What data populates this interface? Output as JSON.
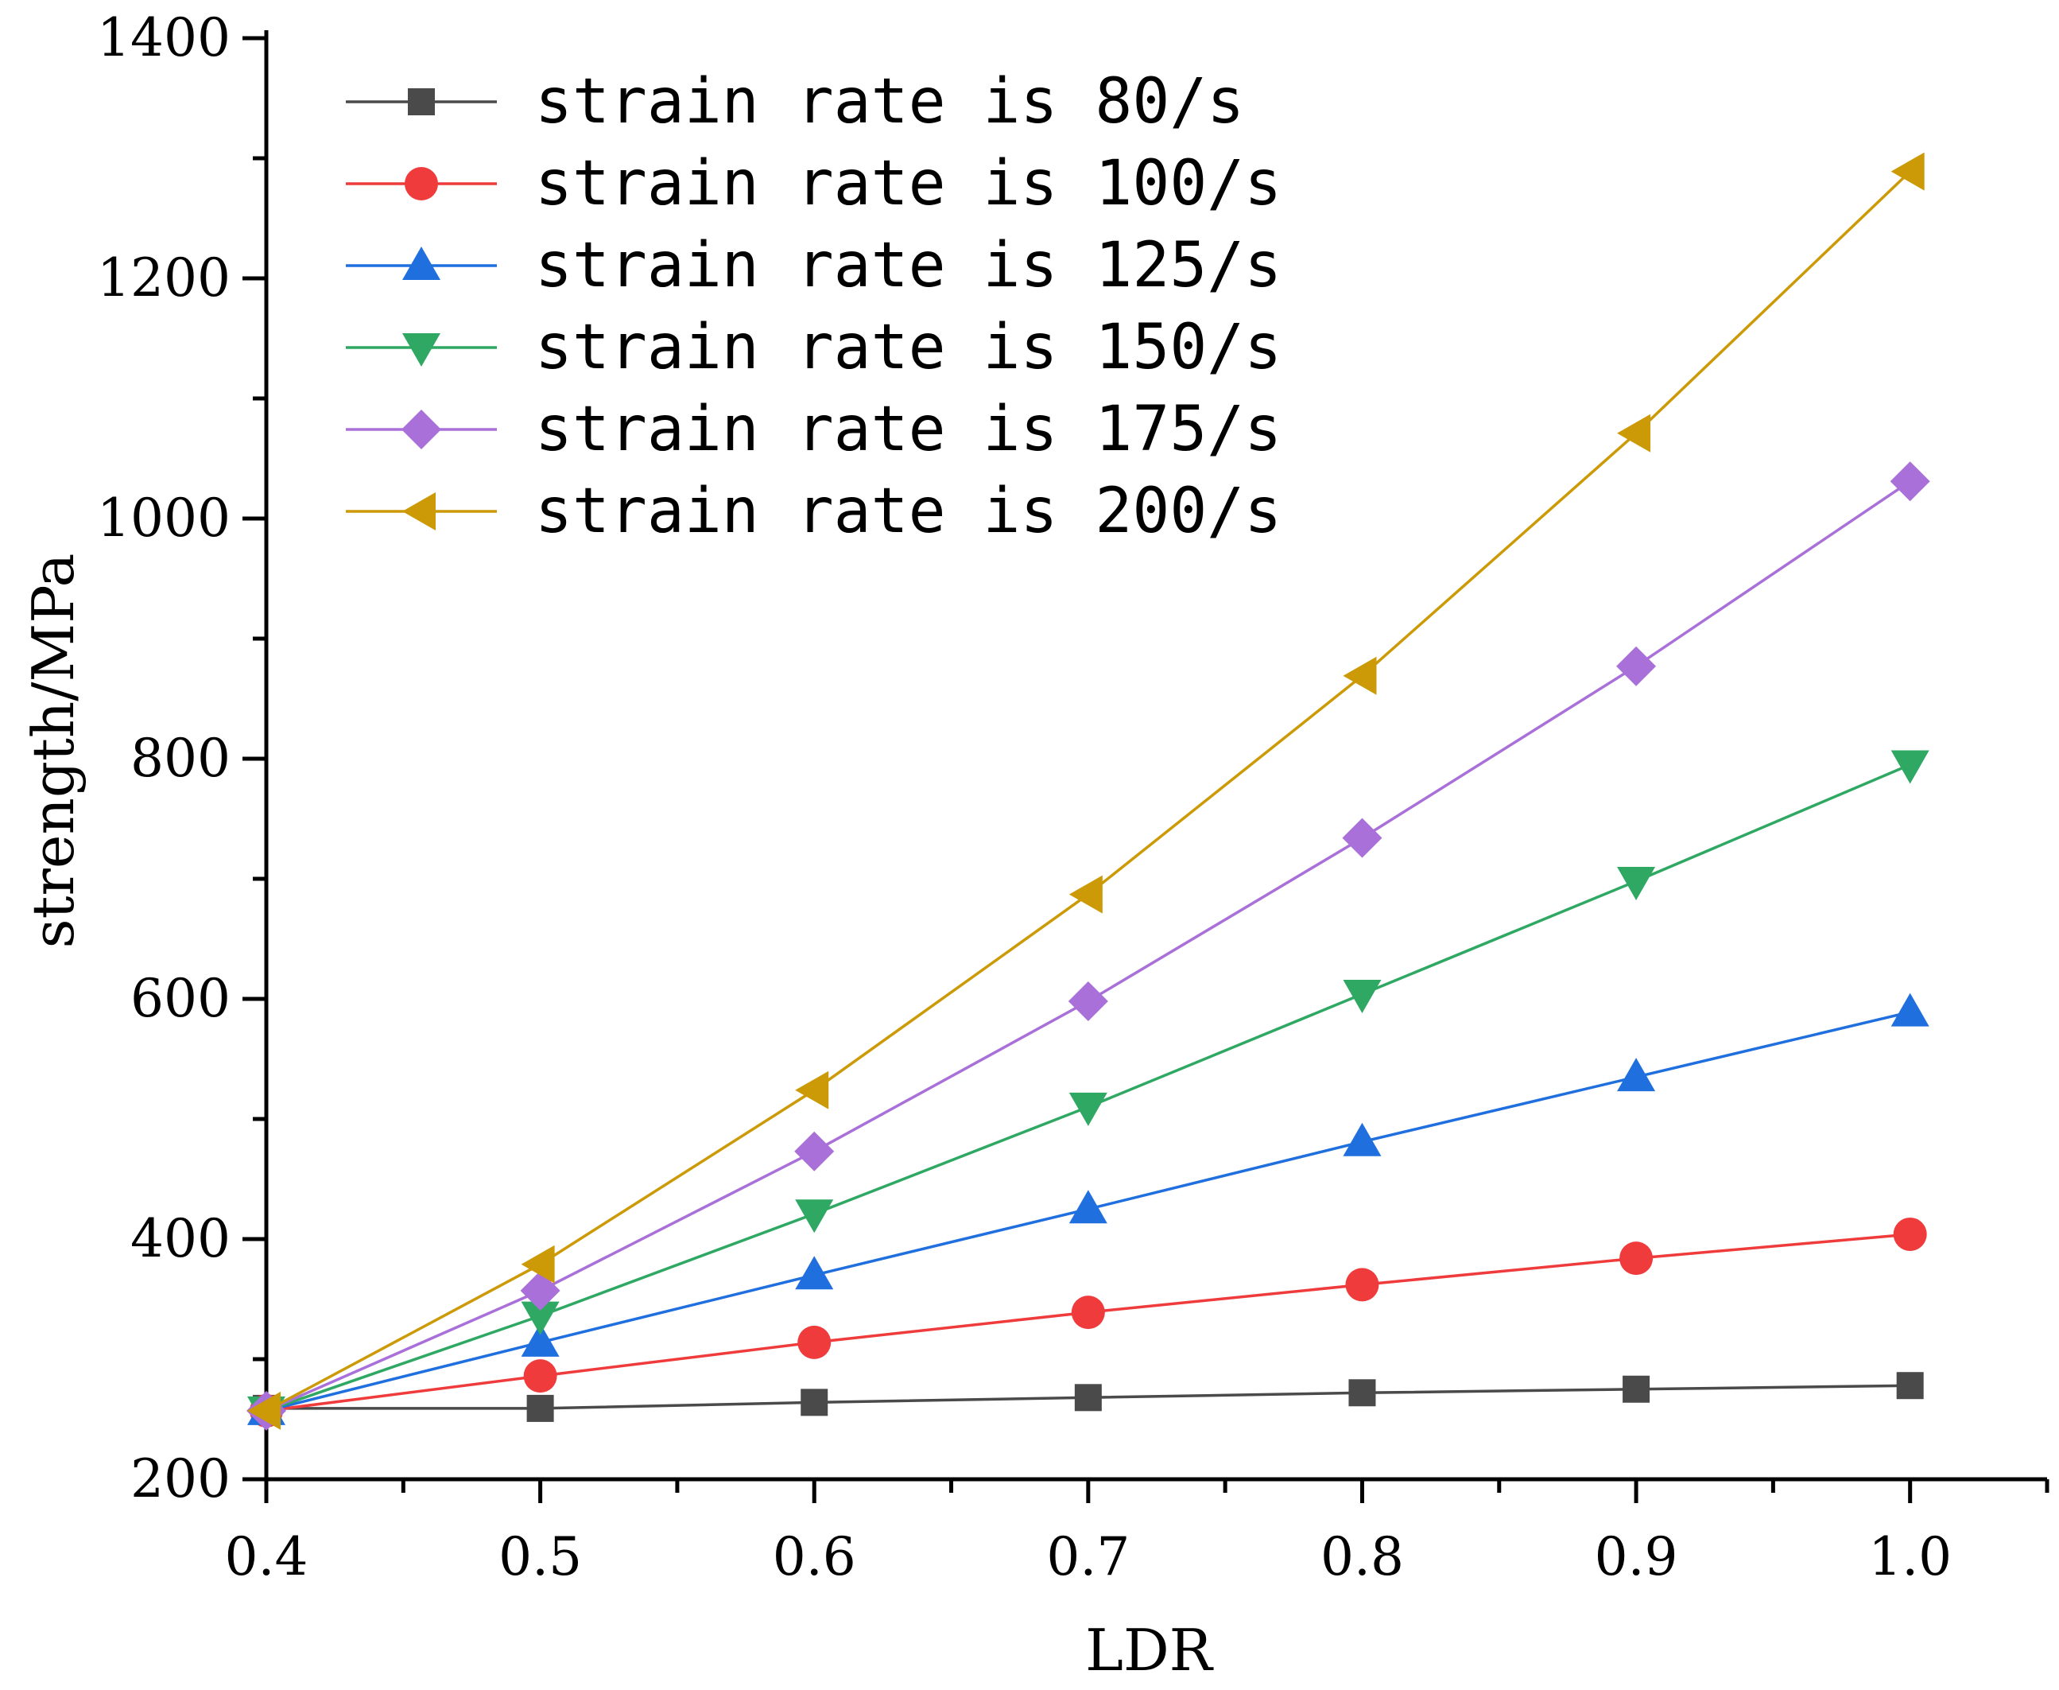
{
  "chart_data": {
    "type": "line",
    "xlabel": "LDR",
    "ylabel": "strength/MPa",
    "xlim": [
      0.4,
      1.05
    ],
    "ylim": [
      200,
      1400
    ],
    "x_ticks": [
      0.4,
      0.5,
      0.6,
      0.7,
      0.8,
      0.9,
      1.0
    ],
    "x_tick_labels": [
      "0.4",
      "0.5",
      "0.6",
      "0.7",
      "0.8",
      "0.9",
      "1.0"
    ],
    "y_ticks": [
      200,
      400,
      600,
      800,
      1000,
      1200,
      1400
    ],
    "y_tick_labels": [
      "200",
      "400",
      "600",
      "800",
      "1000",
      "1200",
      "1400"
    ],
    "grid": false,
    "legend_position": "top-left",
    "x": [
      0.4,
      0.5,
      0.6,
      0.7,
      0.8,
      0.9,
      1.0
    ],
    "series": [
      {
        "name": "strain rate is 80/s",
        "color": "#4a4a4a",
        "marker": "square",
        "values": [
          259,
          259,
          264,
          268,
          272,
          275,
          278
        ]
      },
      {
        "name": "strain rate is 100/s",
        "color": "#ef3b3b",
        "marker": "circle",
        "values": [
          257,
          286,
          314,
          339,
          362,
          384,
          404
        ]
      },
      {
        "name": "strain rate is 125/s",
        "color": "#1f6fdf",
        "marker": "triangle-up",
        "values": [
          257,
          314,
          370,
          425,
          481,
          535,
          589
        ]
      },
      {
        "name": "strain rate is 150/s",
        "color": "#2ea862",
        "marker": "triangle-down",
        "values": [
          257,
          336,
          421,
          510,
          604,
          698,
          795
        ]
      },
      {
        "name": "strain rate is 175/s",
        "color": "#a970d9",
        "marker": "diamond",
        "values": [
          257,
          357,
          473,
          598,
          734,
          877,
          1031
        ]
      },
      {
        "name": "strain rate is 200/s",
        "color": "#cc9a06",
        "marker": "triangle-left",
        "values": [
          257,
          379,
          524,
          687,
          869,
          1071,
          1289
        ]
      }
    ]
  }
}
